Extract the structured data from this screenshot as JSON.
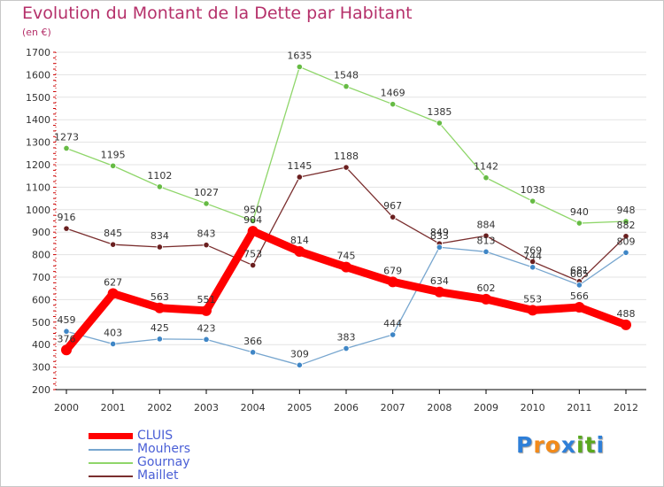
{
  "header": {
    "title": "Evolution du Montant de la Dette par Habitant",
    "subtitle": "(en €)"
  },
  "logo": {
    "text": "Proxiti",
    "letters": [
      "P",
      "r",
      "o",
      "x",
      "i",
      "t",
      "i"
    ],
    "colors": [
      "#2e7fd8",
      "#f28a1a",
      "#f28a1a",
      "#2e7fd8",
      "#5aa81e",
      "#5aa81e",
      "#2e7fd8"
    ]
  },
  "chart_data": {
    "type": "line",
    "title": "Evolution du Montant de la Dette par Habitant",
    "subtitle": "(en €)",
    "xlabel": "",
    "ylabel": "",
    "ylim": [
      200,
      1700
    ],
    "yticks": [
      200,
      300,
      400,
      500,
      600,
      700,
      800,
      900,
      1000,
      1100,
      1200,
      1300,
      1400,
      1500,
      1600,
      1700
    ],
    "categories": [
      "2000",
      "2001",
      "2002",
      "2003",
      "2004",
      "2005",
      "2006",
      "2007",
      "2008",
      "2009",
      "2010",
      "2011",
      "2012"
    ],
    "grid": "horizontal",
    "legend_position": "bottom-left",
    "series": [
      {
        "name": "Gournay",
        "color": "#8fd66a",
        "marker": "#66bb44",
        "values": [
          1273,
          1195,
          1102,
          1027,
          950,
          1635,
          1548,
          1469,
          1385,
          1142,
          1038,
          940,
          948
        ]
      },
      {
        "name": "Maillet",
        "color": "#7a2e2e",
        "marker": "#6a1f1f",
        "values": [
          916,
          845,
          834,
          843,
          753,
          1145,
          1188,
          967,
          849,
          884,
          769,
          681,
          882
        ]
      },
      {
        "name": "Mouhers",
        "color": "#77a6cf",
        "marker": "#3f86c6",
        "values": [
          459,
          403,
          425,
          423,
          366,
          309,
          383,
          444,
          833,
          813,
          744,
          665,
          809
        ]
      },
      {
        "name": "CLUIS",
        "color": "#ff0000",
        "marker": "#ff0000",
        "values": [
          376,
          627,
          563,
          551,
          904,
          814,
          745,
          679,
          634,
          602,
          553,
          566,
          488
        ]
      }
    ],
    "value_labels": {
      "Gournay": [
        "1273",
        "1195",
        "1102",
        "1027",
        "950",
        "1635",
        "1548",
        "1469",
        "1385",
        "1142",
        "1038",
        "940",
        "948"
      ],
      "Maillet": [
        "916",
        "845",
        "834",
        "843",
        "753",
        "1145",
        "1188",
        "967",
        "849",
        "884",
        "769",
        "681",
        "882"
      ],
      "Mouhers": [
        "459",
        "403",
        "425",
        "423",
        "366",
        "309",
        "383",
        "444",
        "833",
        "813",
        "744",
        "665",
        "809"
      ],
      "CLUIS": [
        "376",
        "627",
        "563",
        "551",
        "904",
        "814",
        "745",
        "679",
        "634",
        "602",
        "553",
        "566",
        "488"
      ]
    },
    "legend": [
      {
        "name": "CLUIS",
        "color": "#ff0000"
      },
      {
        "name": "Mouhers",
        "color": "#77a6cf"
      },
      {
        "name": "Gournay",
        "color": "#8fd66a"
      },
      {
        "name": "Maillet",
        "color": "#7a2e2e"
      }
    ]
  }
}
